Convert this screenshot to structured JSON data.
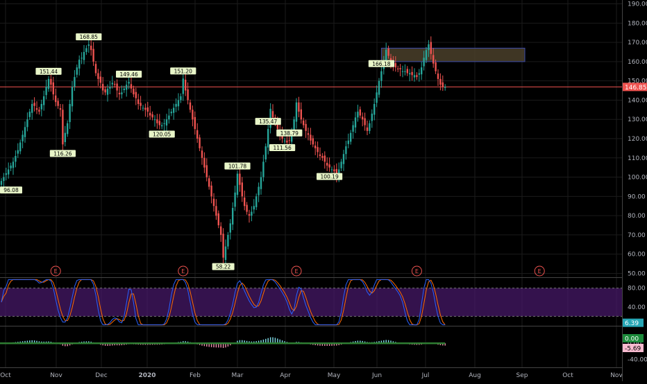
{
  "colors": {
    "up": "#26a69a",
    "down": "#ef5350",
    "grid": "#1b1b1b",
    "axis_text": "#b2b5be",
    "label_bg": "#e8f5c8",
    "price_line": "#ef5350",
    "stoch_k": "#2962ff",
    "stoch_d": "#ff6d00",
    "stoch_band": "#4a1a6e",
    "macd_line": "#2e7d32",
    "hist_pos": "#80deea",
    "hist_neg": "#f48fb1",
    "zone_fill": "#4a3f2a",
    "zone_border": "#3949ab",
    "earnings": "#ef5350",
    "macd_badge": "#1b8a3a",
    "macd_neg_badge": "#f8bbd0",
    "stoch_badge": "#26a6b5"
  },
  "chart_data": {
    "type": "candlestick",
    "price_axis": {
      "ticks": [
        "190.00",
        "180.00",
        "170.00",
        "160.00",
        "150.00",
        "140.00",
        "130.00",
        "120.00",
        "110.00",
        "100.00",
        "90.00",
        "80.00",
        "70.00",
        "60.00",
        "50.00"
      ],
      "range": [
        48,
        192
      ]
    },
    "time_axis": {
      "labels": [
        "Oct",
        "Nov",
        "Dec",
        "2020",
        "Feb",
        "Mar",
        "Apr",
        "May",
        "Jun",
        "Jul",
        "Aug",
        "Sep",
        "Oct",
        "Nov"
      ]
    },
    "last_price": "146.85",
    "closes": [
      98,
      100,
      102,
      104,
      106,
      108,
      111,
      114,
      118,
      122,
      126,
      130,
      134,
      138,
      137,
      135,
      134,
      138,
      142,
      147,
      151,
      148,
      143,
      139,
      137,
      135,
      117,
      123,
      128,
      138,
      147,
      152,
      157,
      161,
      162,
      165,
      167,
      168.9,
      166,
      160,
      154,
      151,
      149,
      145,
      144,
      146,
      147,
      149,
      148,
      145,
      143,
      144,
      146,
      148,
      149.5,
      146,
      143,
      141,
      138,
      137,
      136,
      135,
      134,
      132,
      131,
      130,
      128,
      127,
      127,
      128,
      130,
      132,
      134,
      136,
      138,
      140,
      142,
      151.2,
      145,
      140,
      135,
      130,
      125,
      120,
      115,
      110,
      105,
      100,
      95,
      90,
      85,
      80,
      75,
      70,
      58.2,
      64,
      70,
      76,
      84,
      92,
      101.8,
      96,
      90,
      85,
      82,
      80,
      82,
      85,
      90,
      95,
      100,
      108,
      116,
      125,
      135.5,
      131,
      128,
      125,
      122,
      120,
      119,
      118,
      119,
      122,
      130,
      138.8,
      134,
      130,
      127,
      124,
      122,
      119,
      117,
      115,
      113,
      111,
      110,
      108,
      106,
      105,
      104,
      103,
      100.2,
      104,
      108,
      112,
      116,
      119,
      123,
      127,
      131,
      134,
      132,
      130,
      127,
      124,
      128,
      133,
      138,
      144,
      150,
      155,
      160,
      166.2,
      163,
      160,
      158,
      157,
      156,
      156,
      155,
      155,
      154,
      154,
      153,
      153,
      152,
      154,
      157,
      162,
      166,
      169,
      164,
      159,
      155,
      151,
      148,
      147,
      146.85
    ],
    "swing_labels": [
      {
        "idx": 0,
        "text": "96.08",
        "pos": "below"
      },
      {
        "idx": 20,
        "text": "151.44",
        "pos": "above"
      },
      {
        "idx": 26,
        "text": "116.26",
        "pos": "below"
      },
      {
        "idx": 37,
        "text": "168.85",
        "pos": "above"
      },
      {
        "idx": 54,
        "text": "149.46",
        "pos": "above"
      },
      {
        "idx": 68,
        "text": "120.05",
        "pos": "below"
      },
      {
        "idx": 77,
        "text": "151.20",
        "pos": "above"
      },
      {
        "idx": 94,
        "text": "58.22",
        "pos": "below"
      },
      {
        "idx": 100,
        "text": "101.78",
        "pos": "above"
      },
      {
        "idx": 113,
        "text": "135.47",
        "pos": "above"
      },
      {
        "idx": 119,
        "text": "111.56",
        "pos": "below"
      },
      {
        "idx": 122,
        "text": "138.79",
        "pos": "above"
      },
      {
        "idx": 139,
        "text": "100.19",
        "pos": "below"
      },
      {
        "idx": 161,
        "text": "166.18",
        "pos": "above"
      }
    ],
    "zone": {
      "start_idx": 161,
      "end_idx": 210,
      "y_high": 167,
      "y_low": 160
    },
    "earnings_markers": [
      {
        "idx": 23,
        "text": "E"
      },
      {
        "idx": 77,
        "text": "E"
      },
      {
        "idx": 125,
        "text": "E"
      },
      {
        "idx": 176,
        "text": "E"
      },
      {
        "idx": 228,
        "text": "E"
      }
    ],
    "stochastic": {
      "ticks": [
        "80.00",
        "40.00"
      ],
      "range": [
        0,
        100
      ],
      "band": [
        20,
        80
      ],
      "last_value": "6.39"
    },
    "macd": {
      "ticks": [
        "0.00",
        "-40.00"
      ],
      "range": [
        -60,
        40
      ],
      "last_values": [
        "0.00",
        "-5.69"
      ]
    }
  }
}
